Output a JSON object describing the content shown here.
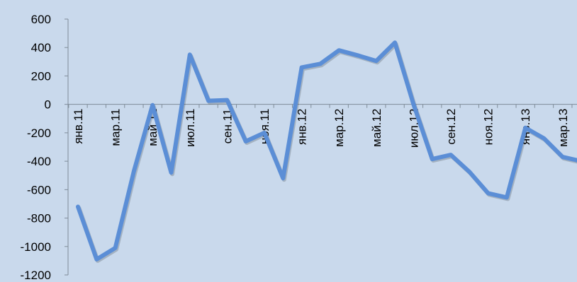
{
  "chart_data": {
    "type": "line",
    "title": "",
    "xlabel": "",
    "ylabel": "",
    "ylim": [
      -1200,
      600
    ],
    "yticks": [
      600,
      400,
      200,
      0,
      -200,
      -400,
      -600,
      -800,
      -1000,
      -1200
    ],
    "grid": false,
    "legend": "none",
    "x": [
      "янв.11",
      "фев.11",
      "мар.11",
      "апр.11",
      "май.11",
      "июн.11",
      "июл.11",
      "авг.11",
      "сен.11",
      "окт.11",
      "ноя.11",
      "дек.11",
      "янв.12",
      "фев.12",
      "мар.12",
      "апр.12",
      "май.12",
      "июн.12",
      "июл.12",
      "авг.12",
      "сен.12",
      "окт.12",
      "ноя.12",
      "дек.12",
      "янв.13",
      "фев.13",
      "мар.13",
      "апр.13"
    ],
    "xtick_labels": [
      "янв.11",
      "мар.11",
      "май.11",
      "июл.11",
      "сен.11",
      "ноя.11",
      "янв.12",
      "мар.12",
      "май.12",
      "июл.12",
      "сен.12",
      "ноя.12",
      "янв.13",
      "мар.13"
    ],
    "series": [
      {
        "color": "#5b8ed6",
        "values": [
          -720,
          -1090,
          -1010,
          -470,
          -5,
          -480,
          350,
          25,
          30,
          -260,
          -200,
          -520,
          260,
          285,
          380,
          345,
          305,
          435,
          0,
          -385,
          -355,
          -475,
          -625,
          -655,
          -165,
          -240,
          -370,
          -400
        ]
      }
    ]
  }
}
